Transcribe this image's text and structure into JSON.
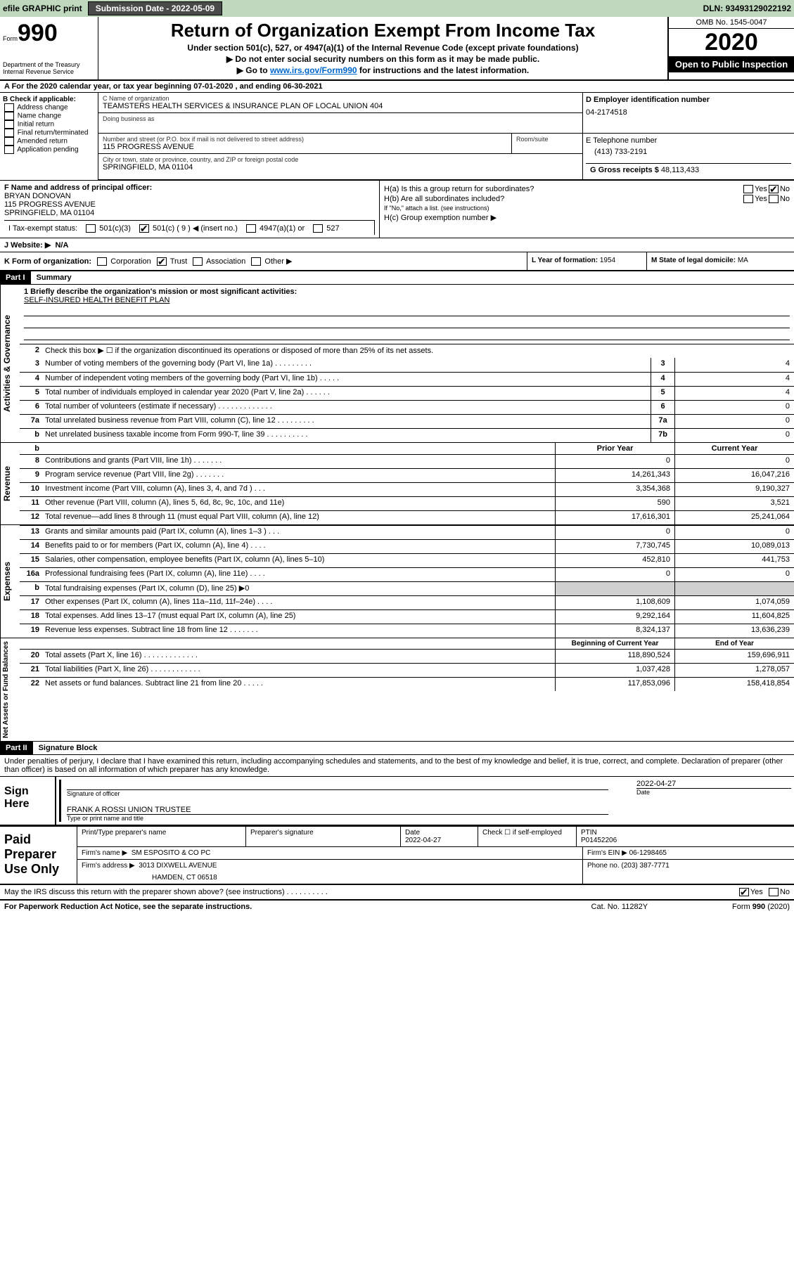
{
  "topbar": {
    "efile": "efile GRAPHIC print",
    "submission": "Submission Date - 2022-05-09",
    "dln": "DLN: 93493129022192"
  },
  "header": {
    "form_word": "Form",
    "form_no": "990",
    "dept": "Department of the Treasury",
    "irs": "Internal Revenue Service",
    "title": "Return of Organization Exempt From Income Tax",
    "sub1": "Under section 501(c), 527, or 4947(a)(1) of the Internal Revenue Code (except private foundations)",
    "sub2": "▶ Do not enter social security numbers on this form as it may be made public.",
    "sub3_pre": "▶ Go to ",
    "sub3_link": "www.irs.gov/Form990",
    "sub3_post": " for instructions and the latest information.",
    "omb": "OMB No. 1545-0047",
    "year": "2020",
    "inspection": "Open to Public Inspection"
  },
  "section_a": "A For the 2020 calendar year, or tax year beginning 07-01-2020   , and ending 06-30-2021",
  "section_b": {
    "title": "B Check if applicable:",
    "items": [
      "Address change",
      "Name change",
      "Initial return",
      "Final return/terminated",
      "Amended return",
      "Application pending"
    ]
  },
  "section_c": {
    "label_name": "C Name of organization",
    "name": "TEAMSTERS HEALTH SERVICES & INSURANCE PLAN OF LOCAL UNION 404",
    "dba_label": "Doing business as",
    "street_label": "Number and street (or P.O. box if mail is not delivered to street address)",
    "suite_label": "Room/suite",
    "street": "115 PROGRESS AVENUE",
    "city_label": "City or town, state or province, country, and ZIP or foreign postal code",
    "city": "SPRINGFIELD, MA  01104"
  },
  "section_d": {
    "label": "D Employer identification number",
    "value": "04-2174518"
  },
  "section_e": {
    "label": "E Telephone number",
    "value": "(413) 733-2191"
  },
  "section_g": {
    "label": "G Gross receipts $",
    "value": "48,113,433"
  },
  "section_f": {
    "label": "F  Name and address of principal officer:",
    "name": "BRYAN DONOVAN",
    "street": "115 PROGRESS AVENUE",
    "city": "SPRINGFIELD, MA  01104"
  },
  "section_h": {
    "ha": "H(a)  Is this a group return for subordinates?",
    "hb": "H(b)  Are all subordinates included?",
    "hb_note": "If \"No,\" attach a list. (see instructions)",
    "hc": "H(c)  Group exemption number ▶",
    "yes": "Yes",
    "no": "No"
  },
  "section_i": {
    "label": "I  Tax-exempt status:",
    "opts": {
      "c3": "501(c)(3)",
      "c": "501(c) ( 9 ) ◀ (insert no.)",
      "a1": "4947(a)(1) or",
      "527": "527"
    }
  },
  "section_j": {
    "label": "J   Website: ▶",
    "value": "N/A"
  },
  "section_k": {
    "label": "K Form of organization:",
    "opts": {
      "corp": "Corporation",
      "trust": "Trust",
      "assoc": "Association",
      "other": "Other ▶"
    }
  },
  "section_l": {
    "label": "L Year of formation:",
    "value": "1954"
  },
  "section_m": {
    "label": "M State of legal domicile:",
    "value": "MA"
  },
  "part1": {
    "header": "Part I",
    "title": "Summary"
  },
  "summary": {
    "l1_label": "1  Briefly describe the organization's mission or most significant activities:",
    "l1_value": "SELF-INSURED HEALTH BENEFIT PLAN",
    "l2": "Check this box ▶ ☐  if the organization discontinued its operations or disposed of more than 25% of its net assets.",
    "lines": [
      {
        "n": "3",
        "t": "Number of voting members of the governing body (Part VI, line 1a)   .    .    .    .    .    .    .    .    .",
        "b": "3",
        "v": "4"
      },
      {
        "n": "4",
        "t": "Number of independent voting members of the governing body (Part VI, line 1b)   .    .    .    .    .",
        "b": "4",
        "v": "4"
      },
      {
        "n": "5",
        "t": "Total number of individuals employed in calendar year 2020 (Part V, line 2a)   .    .    .    .    .    .",
        "b": "5",
        "v": "4"
      },
      {
        "n": "6",
        "t": "Total number of volunteers (estimate if necessary)   .    .    .    .    .    .    .    .    .    .    .    .    .",
        "b": "6",
        "v": "0"
      },
      {
        "n": "7a",
        "t": "Total unrelated business revenue from Part VIII, column (C), line 12   .    .    .    .    .    .    .    .    .",
        "b": "7a",
        "v": "0"
      },
      {
        "n": "b",
        "t": "Net unrelated business taxable income from Form 990-T, line 39   .    .    .    .    .    .    .    .    .    .",
        "b": "7b",
        "v": "0"
      }
    ],
    "col_prior": "Prior Year",
    "col_current": "Current Year",
    "rev": [
      {
        "n": "8",
        "t": "Contributions and grants (Part VIII, line 1h)   .    .    .    .    .    .    .",
        "p": "0",
        "c": "0"
      },
      {
        "n": "9",
        "t": "Program service revenue (Part VIII, line 2g)   .    .    .    .    .    .    .",
        "p": "14,261,343",
        "c": "16,047,216"
      },
      {
        "n": "10",
        "t": "Investment income (Part VIII, column (A), lines 3, 4, and 7d )   .    .    .",
        "p": "3,354,368",
        "c": "9,190,327"
      },
      {
        "n": "11",
        "t": "Other revenue (Part VIII, column (A), lines 5, 6d, 8c, 9c, 10c, and 11e)",
        "p": "590",
        "c": "3,521"
      },
      {
        "n": "12",
        "t": "Total revenue—add lines 8 through 11 (must equal Part VIII, column (A), line 12)",
        "p": "17,616,301",
        "c": "25,241,064"
      }
    ],
    "exp": [
      {
        "n": "13",
        "t": "Grants and similar amounts paid (Part IX, column (A), lines 1–3 )   .    .    .",
        "p": "0",
        "c": "0"
      },
      {
        "n": "14",
        "t": "Benefits paid to or for members (Part IX, column (A), line 4)   .    .    .    .",
        "p": "7,730,745",
        "c": "10,089,013"
      },
      {
        "n": "15",
        "t": "Salaries, other compensation, employee benefits (Part IX, column (A), lines 5–10)",
        "p": "452,810",
        "c": "441,753"
      },
      {
        "n": "16a",
        "t": "Professional fundraising fees (Part IX, column (A), line 11e)   .    .    .    .",
        "p": "0",
        "c": "0"
      },
      {
        "n": "b",
        "t": "Total fundraising expenses (Part IX, column (D), line 25) ▶0",
        "p": "",
        "c": "",
        "shaded": true
      },
      {
        "n": "17",
        "t": "Other expenses (Part IX, column (A), lines 11a–11d, 11f–24e)   .    .    .    .",
        "p": "1,108,609",
        "c": "1,074,059"
      },
      {
        "n": "18",
        "t": "Total expenses. Add lines 13–17 (must equal Part IX, column (A), line 25)",
        "p": "9,292,164",
        "c": "11,604,825"
      },
      {
        "n": "19",
        "t": "Revenue less expenses. Subtract line 18 from line 12   .    .    .    .    .    .    .",
        "p": "8,324,137",
        "c": "13,636,239"
      }
    ],
    "col_begin": "Beginning of Current Year",
    "col_end": "End of Year",
    "net": [
      {
        "n": "20",
        "t": "Total assets (Part X, line 16)   .    .    .    .    .    .    .    .    .    .    .    .    .",
        "p": "118,890,524",
        "c": "159,696,911"
      },
      {
        "n": "21",
        "t": "Total liabilities (Part X, line 26)   .    .    .    .    .    .    .    .    .    .    .    .",
        "p": "1,037,428",
        "c": "1,278,057"
      },
      {
        "n": "22",
        "t": "Net assets or fund balances. Subtract line 21 from line 20   .    .    .    .    .",
        "p": "117,853,096",
        "c": "158,418,854"
      }
    ],
    "side_gov": "Activities & Governance",
    "side_rev": "Revenue",
    "side_exp": "Expenses",
    "side_net": "Net Assets or Fund Balances"
  },
  "part2": {
    "header": "Part II",
    "title": "Signature Block"
  },
  "perjury": "Under penalties of perjury, I declare that I have examined this return, including accompanying schedules and statements, and to the best of my knowledge and belief, it is true, correct, and complete. Declaration of preparer (other than officer) is based on all information of which preparer has any knowledge.",
  "sign": {
    "here": "Sign Here",
    "sig_officer": "Signature of officer",
    "date": "Date",
    "date_val": "2022-04-27",
    "name": "FRANK A ROSSI  UNION TRUSTEE",
    "name_label": "Type or print name and title"
  },
  "paid": {
    "title": "Paid Preparer Use Only",
    "print_label": "Print/Type preparer's name",
    "sig_label": "Preparer's signature",
    "date_label": "Date",
    "date_val": "2022-04-27",
    "check_label": "Check ☐ if self-employed",
    "ptin_label": "PTIN",
    "ptin_val": "P01452206",
    "firm_name_label": "Firm's name    ▶",
    "firm_name": "SM ESPOSITO & CO PC",
    "firm_ein_label": "Firm's EIN ▶",
    "firm_ein": "06-1298465",
    "firm_addr_label": "Firm's address ▶",
    "firm_addr1": "3013 DIXWELL AVENUE",
    "firm_addr2": "HAMDEN, CT  06518",
    "phone_label": "Phone no.",
    "phone": "(203) 387-7771"
  },
  "discuss": {
    "q": "May the IRS discuss this return with the preparer shown above? (see instructions)   .    .    .    .    .    .    .    .    .    .",
    "yes": "Yes",
    "no": "No"
  },
  "footer": {
    "left": "For Paperwork Reduction Act Notice, see the separate instructions.",
    "center": "Cat. No. 11282Y",
    "right": "Form 990 (2020)"
  }
}
